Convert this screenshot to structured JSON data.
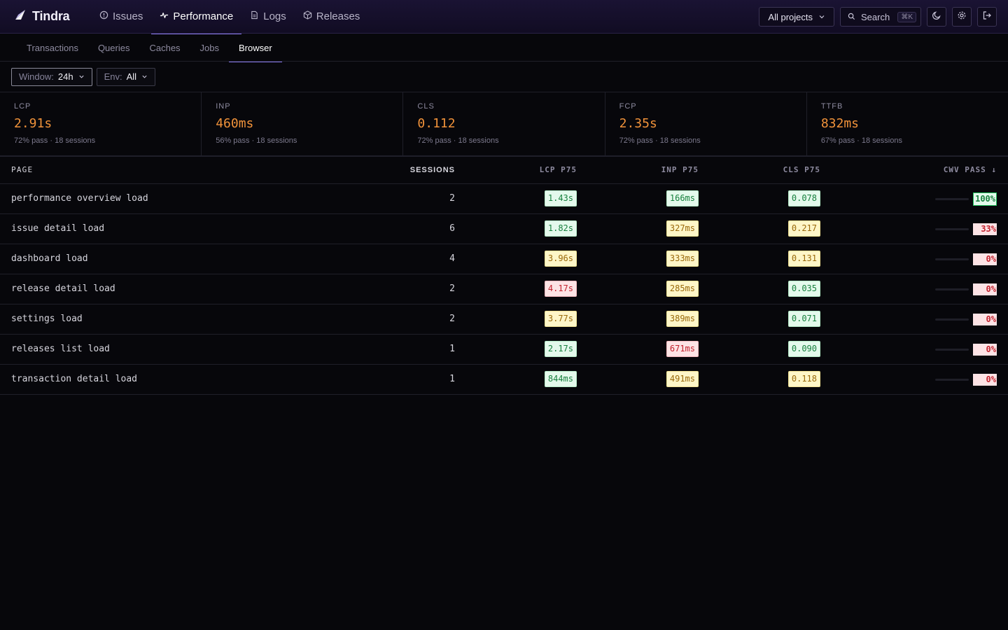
{
  "brand": {
    "name": "Tindra",
    "icon": "tindra-logo-icon"
  },
  "nav": {
    "items": [
      {
        "label": "Issues",
        "icon": "alert-circle-icon",
        "active": false
      },
      {
        "label": "Performance",
        "icon": "activity-pulse-icon",
        "active": true
      },
      {
        "label": "Logs",
        "icon": "document-icon",
        "active": false
      },
      {
        "label": "Releases",
        "icon": "package-box-icon",
        "active": false
      }
    ]
  },
  "header": {
    "project_select": "All projects",
    "search_label": "Search",
    "search_shortcut": "⌘K",
    "icons": [
      "moon-icon",
      "gear-icon",
      "logout-icon"
    ]
  },
  "subnav": {
    "tabs": [
      {
        "label": "Transactions",
        "active": false
      },
      {
        "label": "Queries",
        "active": false
      },
      {
        "label": "Caches",
        "active": false
      },
      {
        "label": "Jobs",
        "active": false
      },
      {
        "label": "Browser",
        "active": true
      }
    ]
  },
  "filters": {
    "window": {
      "key": "Window:",
      "value": "24h"
    },
    "env": {
      "key": "Env:",
      "value": "All"
    }
  },
  "metrics": [
    {
      "label": "LCP",
      "value": "2.91s",
      "sub": "72% pass · 18 sessions"
    },
    {
      "label": "INP",
      "value": "460ms",
      "sub": "56% pass · 18 sessions"
    },
    {
      "label": "CLS",
      "value": "0.112",
      "sub": "72% pass · 18 sessions"
    },
    {
      "label": "FCP",
      "value": "2.35s",
      "sub": "72% pass · 18 sessions"
    },
    {
      "label": "TTFB",
      "value": "832ms",
      "sub": "67% pass · 18 sessions"
    }
  ],
  "table": {
    "headers": {
      "page": "PAGE",
      "sessions": "SESSIONS",
      "lcp": "LCP P75",
      "inp": "INP P75",
      "cls": "CLS P75",
      "cwv": "CWV PASS ↓"
    },
    "rows": [
      {
        "page": "performance overview load",
        "sessions": "2",
        "lcp": "1.43s",
        "lcp_rating": "good",
        "inp": "166ms",
        "inp_rating": "good",
        "cls": "0.078",
        "cls_rating": "good",
        "cwv": "100%",
        "cwv_rating": "good",
        "cwv_fraction": 1.0
      },
      {
        "page": "issue detail load",
        "sessions": "6",
        "lcp": "1.82s",
        "lcp_rating": "good",
        "inp": "327ms",
        "inp_rating": "ni",
        "cls": "0.217",
        "cls_rating": "ni",
        "cwv": "33%",
        "cwv_rating": "poor",
        "cwv_fraction": 0.33
      },
      {
        "page": "dashboard load",
        "sessions": "4",
        "lcp": "3.96s",
        "lcp_rating": "ni",
        "inp": "333ms",
        "inp_rating": "ni",
        "cls": "0.131",
        "cls_rating": "ni",
        "cwv": "0%",
        "cwv_rating": "poor",
        "cwv_fraction": 0
      },
      {
        "page": "release detail load",
        "sessions": "2",
        "lcp": "4.17s",
        "lcp_rating": "poor",
        "inp": "285ms",
        "inp_rating": "ni",
        "cls": "0.035",
        "cls_rating": "good",
        "cwv": "0%",
        "cwv_rating": "poor",
        "cwv_fraction": 0
      },
      {
        "page": "settings load",
        "sessions": "2",
        "lcp": "3.77s",
        "lcp_rating": "ni",
        "inp": "389ms",
        "inp_rating": "ni",
        "cls": "0.071",
        "cls_rating": "good",
        "cwv": "0%",
        "cwv_rating": "poor",
        "cwv_fraction": 0
      },
      {
        "page": "releases list load",
        "sessions": "1",
        "lcp": "2.17s",
        "lcp_rating": "good",
        "inp": "671ms",
        "inp_rating": "poor",
        "cls": "0.090",
        "cls_rating": "good",
        "cwv": "0%",
        "cwv_rating": "poor",
        "cwv_fraction": 0
      },
      {
        "page": "transaction detail load",
        "sessions": "1",
        "lcp": "844ms",
        "lcp_rating": "good",
        "inp": "491ms",
        "inp_rating": "ni",
        "cls": "0.118",
        "cls_rating": "ni",
        "cwv": "0%",
        "cwv_rating": "poor",
        "cwv_fraction": 0
      }
    ]
  }
}
